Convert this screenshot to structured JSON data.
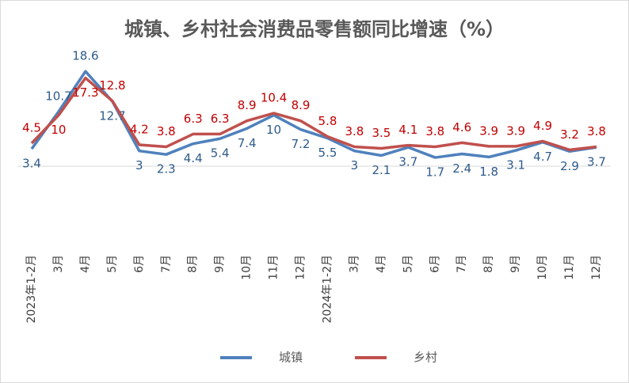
{
  "chart_data": {
    "type": "line",
    "title": "城镇、乡村社会消费品零售额同比增速（%）",
    "categories": [
      "2023年1-2月",
      "3月",
      "4月",
      "5月",
      "6月",
      "7月",
      "8月",
      "9月",
      "10月",
      "11月",
      "12月",
      "2024年1-2月",
      "3月",
      "4月",
      "5月",
      "6月",
      "7月",
      "8月",
      "9月",
      "10月",
      "11月",
      "12月"
    ],
    "series": [
      {
        "name": "城镇",
        "color": "#4f81bd",
        "label_color": "#2e5a8a",
        "values": [
          3.4,
          10.7,
          18.6,
          12.7,
          3,
          2.3,
          4.4,
          5.4,
          7.4,
          10,
          7.2,
          5.5,
          3,
          2.1,
          3.7,
          1.7,
          2.4,
          1.8,
          3.1,
          4.7,
          2.9,
          3.7
        ]
      },
      {
        "name": "乡村",
        "color": "#c0504d",
        "label_color": "#c00000",
        "values": [
          4.5,
          10,
          17.3,
          12.8,
          4.2,
          3.8,
          6.3,
          6.3,
          8.9,
          10.4,
          8.9,
          5.8,
          3.8,
          3.5,
          4.1,
          3.8,
          4.6,
          3.9,
          3.9,
          4.9,
          3.2,
          3.8
        ]
      }
    ],
    "ylim": [
      0,
      25
    ],
    "legend": "bottom"
  }
}
